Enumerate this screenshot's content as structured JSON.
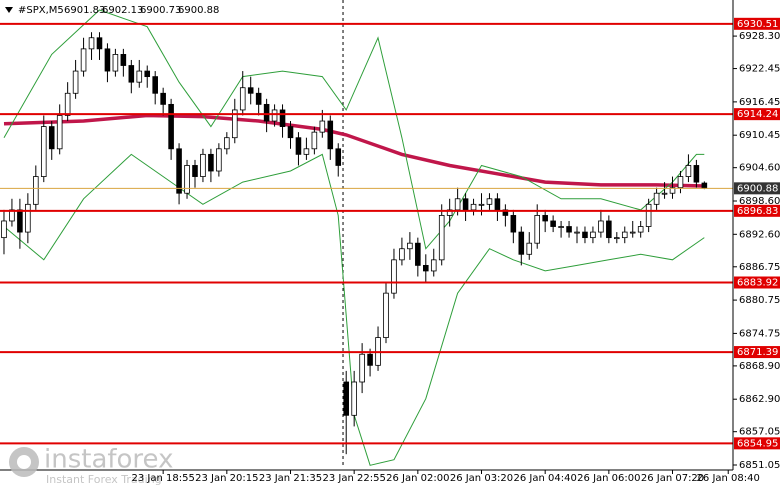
{
  "chart_data": {
    "type": "candlestick",
    "symbol": "#SPX,M5",
    "open": [
      6892,
      6895,
      6897,
      6893,
      6898,
      6903,
      6912,
      6908,
      6914,
      6918,
      6922,
      6926,
      6928,
      6926,
      6922,
      6925,
      6923,
      6920,
      6922,
      6921,
      6918,
      6916,
      6908,
      6900,
      6905,
      6903,
      6907,
      6904,
      6908,
      6910,
      6915,
      6919,
      6918,
      6916,
      6913,
      6915,
      6912,
      6910,
      6907,
      6908,
      6911,
      6913,
      6908,
      6866,
      6860,
      6866,
      6871,
      6869,
      6874,
      6882,
      6888,
      6890,
      6891,
      6887,
      6886,
      6888,
      6896,
      6897,
      6899,
      6897,
      6898,
      6898,
      6899,
      6897,
      6896,
      6893,
      6889,
      6891,
      6896,
      6895,
      6894,
      6894,
      6893,
      6893,
      6892,
      6893,
      6895,
      6892,
      6892,
      6893,
      6893,
      6894,
      6898,
      6900,
      6900,
      6901,
      6903,
      6905,
      6901.83
    ],
    "high": [
      6897,
      6899,
      6899,
      6900,
      6905,
      6914,
      6913,
      6916,
      6920,
      6924,
      6928,
      6929,
      6929,
      6927,
      6926,
      6926,
      6924,
      6924,
      6923,
      6922,
      6919,
      6917,
      6909,
      6906,
      6906,
      6908,
      6908,
      6909,
      6911,
      6917,
      6922,
      6921,
      6919,
      6917,
      6916,
      6916,
      6913,
      6911,
      6910,
      6912,
      6915,
      6914,
      6909,
      6868,
      6868,
      6873,
      6872,
      6876,
      6884,
      6890,
      6892,
      6893,
      6892,
      6889,
      6890,
      6898,
      6899,
      6901,
      6900,
      6899,
      6900,
      6900,
      6900,
      6898,
      6897,
      6894,
      6893,
      6898,
      6897,
      6896,
      6895,
      6895,
      6894,
      6894,
      6894,
      6897,
      6896,
      6893,
      6894,
      6895,
      6895,
      6899,
      6901,
      6902,
      6903,
      6904,
      6907,
      6906,
      6902.13
    ],
    "low": [
      6889,
      6894,
      6890,
      6891,
      6897,
      6902,
      6906,
      6907,
      6913,
      6917,
      6921,
      6924,
      6924,
      6920,
      6921,
      6921,
      6918,
      6919,
      6919,
      6916,
      6914,
      6906,
      6898,
      6899,
      6901,
      6902,
      6902,
      6903,
      6907,
      6909,
      6914,
      6916,
      6914,
      6911,
      6912,
      6910,
      6908,
      6905,
      6906,
      6907,
      6910,
      6906,
      6903,
      6853,
      6858,
      6864,
      6867,
      6868,
      6873,
      6881,
      6887,
      6888,
      6885,
      6884,
      6885,
      6887,
      6894,
      6896,
      6895,
      6896,
      6896,
      6897,
      6895,
      6894,
      6891,
      6887,
      6888,
      6890,
      6893,
      6893,
      6892,
      6892,
      6891,
      6891,
      6891,
      6892,
      6891,
      6891,
      6891,
      6892,
      6892,
      6893,
      6897,
      6899,
      6899,
      6900,
      6902,
      6901,
      6900.73
    ],
    "close": [
      6895,
      6897,
      6893,
      6898,
      6903,
      6912,
      6908,
      6914,
      6918,
      6922,
      6926,
      6928,
      6926,
      6922,
      6925,
      6923,
      6920,
      6922,
      6921,
      6918,
      6916,
      6908,
      6900,
      6905,
      6903,
      6907,
      6904,
      6908,
      6910,
      6915,
      6919,
      6918,
      6916,
      6913,
      6915,
      6912,
      6910,
      6907,
      6908,
      6911,
      6913,
      6908,
      6905,
      6860,
      6866,
      6871,
      6869,
      6874,
      6882,
      6888,
      6890,
      6891,
      6887,
      6886,
      6888,
      6896,
      6897,
      6899,
      6897,
      6898,
      6898,
      6899,
      6897,
      6896,
      6893,
      6889,
      6891,
      6896,
      6895,
      6894,
      6894,
      6893,
      6893,
      6892,
      6893,
      6895,
      6892,
      6892,
      6893,
      6893,
      6894,
      6898,
      6900,
      6900,
      6901,
      6903,
      6905,
      6902,
      6900.88
    ],
    "color": "#000000",
    "xlim": [
      -0.5,
      91.6
    ],
    "xticks": [
      {
        "value": 20,
        "label": "23 Jan 18:55"
      },
      {
        "value": 28,
        "label": "23 Jan 20:15"
      },
      {
        "value": 36,
        "label": "23 Jan 21:35"
      },
      {
        "value": 44,
        "label": "23 Jan 22:55"
      },
      {
        "value": 52,
        "label": "26 Jan 02:00"
      },
      {
        "value": 60,
        "label": "26 Jan 03:20"
      },
      {
        "value": 68,
        "label": "26 Jan 04:40"
      },
      {
        "value": 76,
        "label": "26 Jan 06:00"
      },
      {
        "value": 84,
        "label": "26 Jan 07:20"
      },
      {
        "value": 91,
        "label": "26 Jan 08:40"
      }
    ],
    "ylim": [
      6851.05,
      6934.8
    ],
    "yticks": [
      {
        "value": 6928.3,
        "label": "6928.30"
      },
      6922.45,
      6916.45,
      6910.45,
      {
        "value": 6904.6,
        "label": "6904.60"
      },
      {
        "value": 6898.6,
        "label": "6898.60"
      },
      {
        "value": 6892.6,
        "label": "6892.60"
      },
      6886.75,
      6880.75,
      6874.75,
      {
        "value": 6868.9,
        "label": "6868.90"
      },
      {
        "value": 6862.9,
        "label": "6862.90"
      },
      6857.05,
      6851.05
    ],
    "levels": [
      6930.51,
      6914.24,
      6896.83,
      6883.92,
      6871.39,
      6854.95
    ],
    "level_color": "#e00000",
    "overlays": [
      {
        "color": "#c0164a",
        "width": 3.5,
        "x": [
          0,
          10,
          18,
          25,
          32,
          40,
          43,
          50,
          56,
          62,
          68,
          75,
          82,
          88
        ],
        "values": [
          6912.5,
          6913,
          6914,
          6913.8,
          6913,
          6911.5,
          6910.5,
          6907,
          6905,
          6903.5,
          6902,
          6901.5,
          6901.5,
          6901.3
        ]
      },
      {
        "color": "#2e9e3a",
        "width": 1,
        "x": [
          0,
          6,
          12,
          18,
          22,
          26,
          30,
          35,
          40,
          43,
          47,
          50,
          53,
          56,
          60,
          65,
          70,
          75,
          80,
          84,
          87,
          88
        ],
        "values": [
          6910,
          6925,
          6933,
          6930,
          6920,
          6912,
          6921,
          6922,
          6921,
          6915,
          6928,
          6910,
          6890,
          6895,
          6905,
          6903,
          6899,
          6899,
          6897,
          6902,
          6907,
          6907
        ]
      },
      {
        "color": "#2e9e3a",
        "width": 1,
        "x": [
          0,
          5,
          10,
          16,
          21,
          25,
          30,
          36,
          40,
          42,
          44,
          46,
          49,
          53,
          57,
          61,
          64,
          68,
          72,
          76,
          80,
          84,
          88
        ],
        "values": [
          6894,
          6888,
          6899,
          6907,
          6902,
          6898,
          6902,
          6904,
          6907,
          6896,
          6860,
          6851,
          6852,
          6863,
          6882,
          6890,
          6888,
          6886,
          6887,
          6888,
          6889,
          6888,
          6892
        ]
      }
    ]
  },
  "watermark": {
    "brand": "instaforex",
    "tagline": "Instant Forex Trading"
  }
}
